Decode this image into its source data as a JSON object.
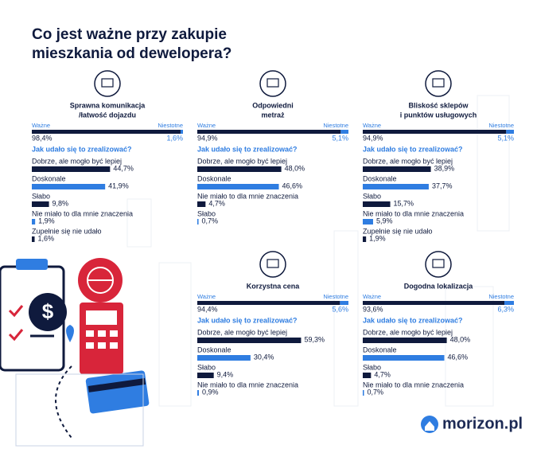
{
  "title_lines": [
    "Co jest ważne przy zakupie",
    "mieszkania od dewelopera?"
  ],
  "logo": "morizon.pl",
  "chart_data": [
    {
      "type": "bar",
      "title_lines": [
        "Sprawna komunikacja",
        "/łatwość dojazdu"
      ],
      "important": {
        "label": "Ważne",
        "value": 98.4,
        "value_label": "98,4%",
        "color": "#0f1a3d"
      },
      "unimportant": {
        "label": "Niestotne",
        "value": 1.6,
        "value_label": "1,6%",
        "color": "#2f7de1"
      },
      "subtitle": "Jak udało się to zrealizować?",
      "categories": [
        "Dobrze, ale mogło być lepiej",
        "Doskonale",
        "Słabo",
        "Nie miało to dla mnie znaczenia",
        "Zupełnie się nie udało"
      ],
      "values": [
        44.7,
        41.9,
        9.8,
        1.9,
        1.6
      ],
      "value_labels": [
        "44,7%",
        "41,9%",
        "9,8%",
        "1,9%",
        "1,6%"
      ],
      "colors": [
        "#0f1a3d",
        "#2f7de1",
        "#0f1a3d",
        "#2f7de1",
        "#0f1a3d"
      ],
      "xlim": [
        0,
        100
      ]
    },
    {
      "type": "bar",
      "title_lines": [
        "Odpowiedni",
        "metraż"
      ],
      "important": {
        "label": "Ważne",
        "value": 94.9,
        "value_label": "94,9%",
        "color": "#0f1a3d"
      },
      "unimportant": {
        "label": "Niestotne",
        "value": 5.1,
        "value_label": "5,1%",
        "color": "#2f7de1"
      },
      "subtitle": "Jak udało się to zrealizować?",
      "categories": [
        "Dobrze, ale mogło być lepiej",
        "Doskonale",
        "Nie miało to dla mnie znaczenia",
        "Słabo"
      ],
      "values": [
        48.0,
        46.6,
        4.7,
        0.7
      ],
      "value_labels": [
        "48,0%",
        "46,6%",
        "4,7%",
        "0,7%"
      ],
      "colors": [
        "#0f1a3d",
        "#2f7de1",
        "#0f1a3d",
        "#2f7de1"
      ],
      "xlim": [
        0,
        100
      ]
    },
    {
      "type": "bar",
      "title_lines": [
        "Bliskość sklepów",
        "i punktów usługowych"
      ],
      "important": {
        "label": "Ważne",
        "value": 94.9,
        "value_label": "94,9%",
        "color": "#0f1a3d"
      },
      "unimportant": {
        "label": "Niestotne",
        "value": 5.1,
        "value_label": "5,1%",
        "color": "#2f7de1"
      },
      "subtitle": "Jak udało się to zrealizować?",
      "categories": [
        "Dobrze, ale mogło być lepiej",
        "Doskonale",
        "Słabo",
        "Nie miało to dla mnie znaczenia",
        "Zupełnie się nie udało"
      ],
      "values": [
        38.9,
        37.7,
        15.7,
        5.9,
        1.9
      ],
      "value_labels": [
        "38,9%",
        "37,7%",
        "15,7%",
        "5,9%",
        "1,9%"
      ],
      "colors": [
        "#0f1a3d",
        "#2f7de1",
        "#0f1a3d",
        "#2f7de1",
        "#0f1a3d"
      ],
      "xlim": [
        0,
        100
      ]
    },
    {
      "type": "bar",
      "title_lines": [
        "Korzystna cena"
      ],
      "important": {
        "label": "Ważne",
        "value": 94.4,
        "value_label": "94,4%",
        "color": "#0f1a3d"
      },
      "unimportant": {
        "label": "Niestotne",
        "value": 5.6,
        "value_label": "5,6%",
        "color": "#2f7de1"
      },
      "subtitle": "Jak udało się to zrealizować?",
      "categories": [
        "Dobrze, ale mogło być lepiej",
        "Doskonale",
        "Słabo",
        "Nie miało to dla mnie znaczenia"
      ],
      "values": [
        59.3,
        30.4,
        9.4,
        0.9
      ],
      "value_labels": [
        "59,3%",
        "30,4%",
        "9,4%",
        "0,9%"
      ],
      "colors": [
        "#0f1a3d",
        "#2f7de1",
        "#0f1a3d",
        "#2f7de1"
      ],
      "xlim": [
        0,
        100
      ]
    },
    {
      "type": "bar",
      "title_lines": [
        "Dogodna lokalizacja"
      ],
      "important": {
        "label": "Ważne",
        "value": 93.6,
        "value_label": "93,6%",
        "color": "#0f1a3d"
      },
      "unimportant": {
        "label": "Niestotne",
        "value": 6.3,
        "value_label": "6,3%",
        "color": "#2f7de1"
      },
      "subtitle": "Jak udało się to zrealizować?",
      "categories": [
        "Dobrze, ale mogło być lepiej",
        "Doskonale",
        "Słabo",
        "Nie miało to dla mnie znaczenia"
      ],
      "values": [
        48.0,
        46.6,
        4.7,
        0.7
      ],
      "value_labels": [
        "48,0%",
        "46,6%",
        "4,7%",
        "0,7%"
      ],
      "colors": [
        "#0f1a3d",
        "#2f7de1",
        "#0f1a3d",
        "#2f7de1"
      ],
      "xlim": [
        0,
        100
      ]
    }
  ]
}
